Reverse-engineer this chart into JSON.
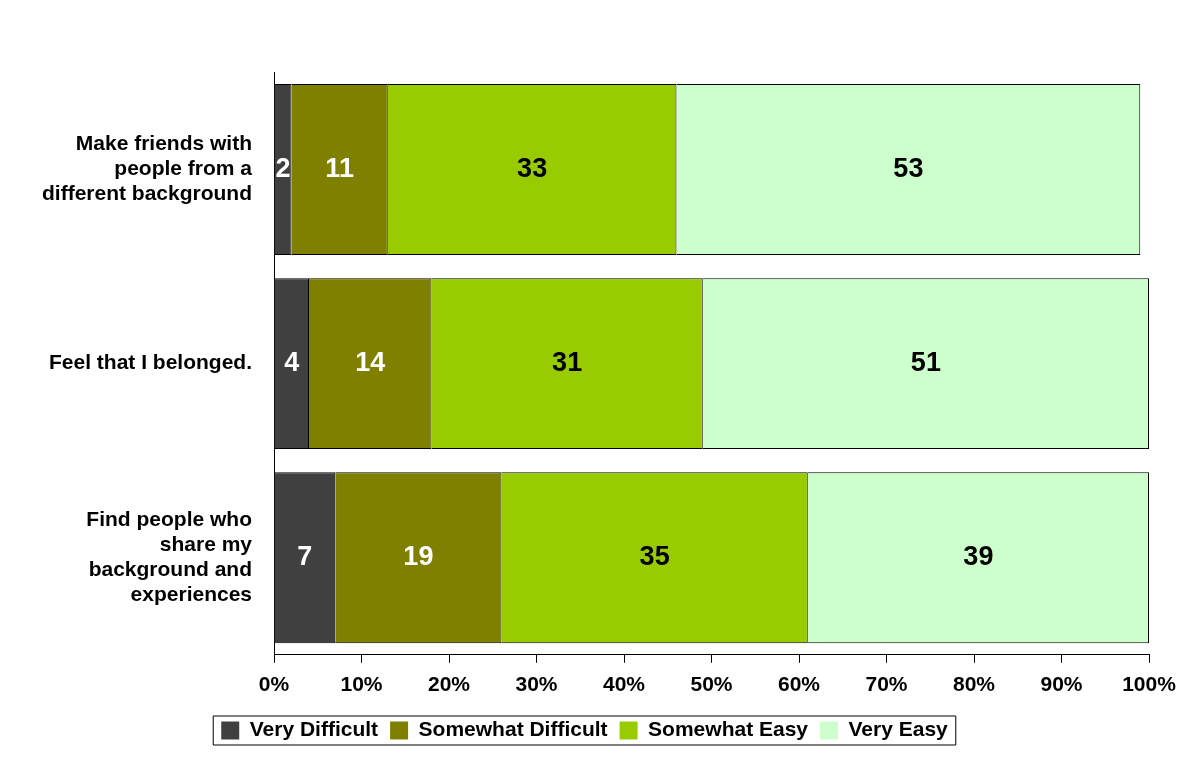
{
  "chart_data": {
    "type": "bar",
    "orientation": "horizontal",
    "stacked": true,
    "categories": [
      "Make friends with people from a different background",
      "Feel that I belonged.",
      "Find people who share my background and experiences"
    ],
    "series": [
      {
        "name": "Very Difficult",
        "color": "#404040",
        "values": [
          2,
          4,
          7
        ]
      },
      {
        "name": "Somewhat Difficult",
        "color": "#808000",
        "values": [
          11,
          14,
          19
        ]
      },
      {
        "name": "Somewhat Easy",
        "color": "#99cc00",
        "values": [
          33,
          31,
          35
        ]
      },
      {
        "name": "Very Easy",
        "color": "#ccffcc",
        "values": [
          53,
          51,
          39
        ]
      }
    ],
    "xlim": [
      0,
      100
    ],
    "xticks": [
      {
        "value": 0,
        "label": "0%"
      },
      {
        "value": 10,
        "label": "10%"
      },
      {
        "value": 20,
        "label": "20%"
      },
      {
        "value": 30,
        "label": "30%"
      },
      {
        "value": 40,
        "label": "40%"
      },
      {
        "value": 50,
        "label": "50%"
      },
      {
        "value": 60,
        "label": "60%"
      },
      {
        "value": 70,
        "label": "70%"
      },
      {
        "value": 80,
        "label": "80%"
      },
      {
        "value": 90,
        "label": "90%"
      },
      {
        "value": 100,
        "label": "100%"
      }
    ],
    "data_labels": true,
    "grid": false,
    "legend": "bottom"
  }
}
